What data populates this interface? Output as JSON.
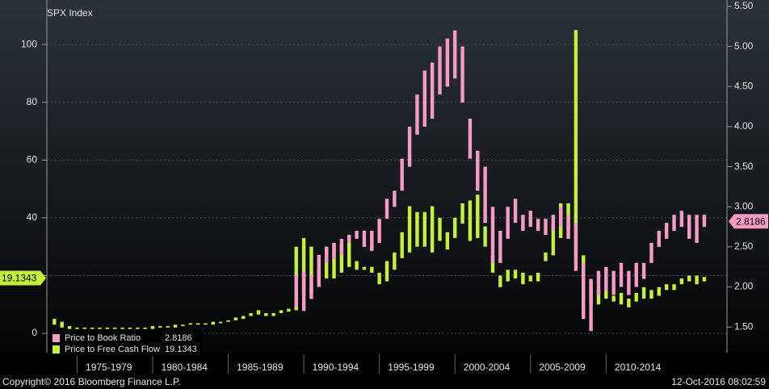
{
  "chart_data": {
    "type": "range_bar",
    "title": "SPX Index",
    "footer": "Copyright© 2016 Bloomberg Finance L.P.",
    "timestamp": "12-Oct-2016 08:02:59",
    "grid": true,
    "x": [
      1973.5,
      1974,
      1974.5,
      1975,
      1975.5,
      1976,
      1976.5,
      1977,
      1977.5,
      1978,
      1978.5,
      1979,
      1979.5,
      1980,
      1980.5,
      1981,
      1981.5,
      1982,
      1982.5,
      1983,
      1983.5,
      1984,
      1984.5,
      1985,
      1985.5,
      1986,
      1986.5,
      1987,
      1987.5,
      1988,
      1988.5,
      1989,
      1989.5,
      1990,
      1990.5,
      1991,
      1991.5,
      1992,
      1992.5,
      1993,
      1993.5,
      1994,
      1994.5,
      1995,
      1995.5,
      1996,
      1996.5,
      1997,
      1997.5,
      1998,
      1998.5,
      1999,
      1999.5,
      2000,
      2000.5,
      2001,
      2001.5,
      2002,
      2002.5,
      2003,
      2003.5,
      2004,
      2004.5,
      2005,
      2005.5,
      2006,
      2006.5,
      2007,
      2007.5,
      2008,
      2008.5,
      2009,
      2009.5,
      2010,
      2010.5,
      2011,
      2011.5,
      2012,
      2012.5,
      2013,
      2013.5,
      2014,
      2014.5,
      2015,
      2015.5,
      2016,
      2016.5
    ],
    "xlim": [
      1973,
      2018
    ],
    "xticks": [
      {
        "value": 1975,
        "label": "1975-1979"
      },
      {
        "value": 1980,
        "label": "1980-1984"
      },
      {
        "value": 1985,
        "label": "1985-1989"
      },
      {
        "value": 1990,
        "label": "1990-1994"
      },
      {
        "value": 1995,
        "label": "1995-1999"
      },
      {
        "value": 2000,
        "label": "2000-2004"
      },
      {
        "value": 2005,
        "label": "2005-2009"
      },
      {
        "value": 2010,
        "label": "2010-2014"
      }
    ],
    "ylim": [
      -6.7,
      115.4
    ],
    "yticks": [
      0,
      20,
      40,
      60,
      80,
      100
    ],
    "y2lim": [
      1.18,
      5.58
    ],
    "y2ticks": [
      {
        "value": 1.5,
        "label": "1.50"
      },
      {
        "value": 2,
        "label": "2.00"
      },
      {
        "value": 2.5,
        "label": "2.50"
      },
      {
        "value": 3,
        "label": "3.00"
      },
      {
        "value": 3.5,
        "label": "3.50"
      },
      {
        "value": 4,
        "label": "4.00"
      },
      {
        "value": 4.5,
        "label": "4.50"
      },
      {
        "value": 5,
        "label": "5.00"
      },
      {
        "value": 5.5,
        "label": "5.50"
      }
    ],
    "series": [
      {
        "name": "Price to Free Cash Flow",
        "color": "#c5f13a",
        "axis": "y",
        "last": 19.1343,
        "low": [
          3,
          2,
          1.5,
          1.5,
          1.5,
          1.5,
          1.5,
          1.5,
          1.5,
          1.5,
          1.5,
          1.5,
          1.5,
          1.5,
          2,
          2,
          2,
          2.5,
          3,
          3,
          3,
          3,
          3.5,
          4,
          4.5,
          5,
          6,
          6.5,
          6,
          6,
          7,
          7.5,
          8,
          13,
          14,
          18,
          19,
          19,
          21,
          23,
          22,
          22,
          21,
          17,
          18,
          22,
          26,
          28,
          30,
          30,
          28,
          32,
          29,
          33,
          38,
          32,
          33,
          30,
          21,
          16,
          18,
          19,
          17,
          18,
          18,
          25,
          27,
          33,
          36,
          26,
          12,
          10,
          10,
          12,
          11,
          10,
          9,
          11,
          12,
          12,
          13,
          15,
          15,
          17,
          18,
          17,
          18
        ],
        "high": [
          5,
          4,
          2.5,
          2,
          2,
          2,
          2,
          2,
          2,
          2,
          2,
          2,
          2,
          2.5,
          2.5,
          2.5,
          3,
          3,
          3.5,
          3.5,
          3.5,
          4,
          4,
          4.5,
          5.5,
          6,
          7,
          8,
          7,
          7,
          8,
          8.5,
          30,
          33,
          30,
          22,
          30,
          31,
          31,
          32,
          25,
          23,
          23,
          21,
          25,
          28,
          35,
          44,
          42,
          42,
          44,
          40,
          35,
          40,
          45,
          46,
          48,
          37,
          27,
          20,
          22,
          22,
          21,
          20,
          21,
          28,
          38,
          45,
          45,
          105,
          27,
          18,
          15,
          15,
          13,
          14,
          12,
          14,
          16,
          15,
          16,
          17,
          17,
          19,
          20,
          20,
          19.5
        ]
      },
      {
        "name": "Price to Book Ratio",
        "color": "#f59bc4",
        "axis": "y2",
        "last": 2.8186,
        "low": [
          null,
          null,
          null,
          null,
          null,
          null,
          null,
          null,
          null,
          null,
          null,
          null,
          null,
          null,
          null,
          null,
          null,
          null,
          null,
          null,
          null,
          null,
          null,
          null,
          null,
          null,
          null,
          null,
          null,
          null,
          null,
          null,
          1.75,
          1.7,
          1.85,
          2.0,
          2.3,
          2.35,
          2.4,
          2.55,
          2.6,
          2.5,
          2.45,
          2.55,
          2.85,
          3.0,
          3.2,
          3.5,
          3.9,
          4.0,
          4.1,
          4.4,
          4.5,
          4.6,
          4.3,
          3.6,
          3.2,
          2.8,
          2.3,
          2.3,
          2.6,
          2.8,
          2.7,
          2.75,
          2.7,
          2.65,
          2.7,
          2.75,
          2.6,
          2.2,
          1.6,
          1.45,
          1.9,
          1.95,
          1.9,
          2.0,
          1.9,
          2.0,
          2.1,
          2.3,
          2.5,
          2.6,
          2.7,
          2.75,
          2.6,
          2.55,
          2.75
        ],
        "high": [
          null,
          null,
          null,
          null,
          null,
          null,
          null,
          null,
          null,
          null,
          null,
          null,
          null,
          null,
          null,
          null,
          null,
          null,
          null,
          null,
          null,
          null,
          null,
          null,
          null,
          null,
          null,
          null,
          null,
          null,
          null,
          null,
          2.15,
          2.2,
          2.15,
          2.4,
          2.5,
          2.55,
          2.6,
          2.65,
          2.7,
          2.7,
          2.7,
          2.85,
          3.1,
          3.2,
          3.6,
          4.0,
          4.4,
          4.7,
          4.8,
          5.0,
          5.1,
          5.2,
          5.0,
          4.1,
          3.7,
          3.5,
          3.0,
          2.7,
          3.0,
          3.1,
          2.9,
          2.95,
          2.85,
          2.85,
          2.9,
          3.0,
          2.9,
          2.8,
          2.3,
          2.1,
          2.2,
          2.25,
          2.2,
          2.3,
          2.2,
          2.3,
          2.3,
          2.55,
          2.7,
          2.8,
          2.9,
          2.95,
          2.9,
          2.9,
          2.9
        ]
      }
    ]
  }
}
